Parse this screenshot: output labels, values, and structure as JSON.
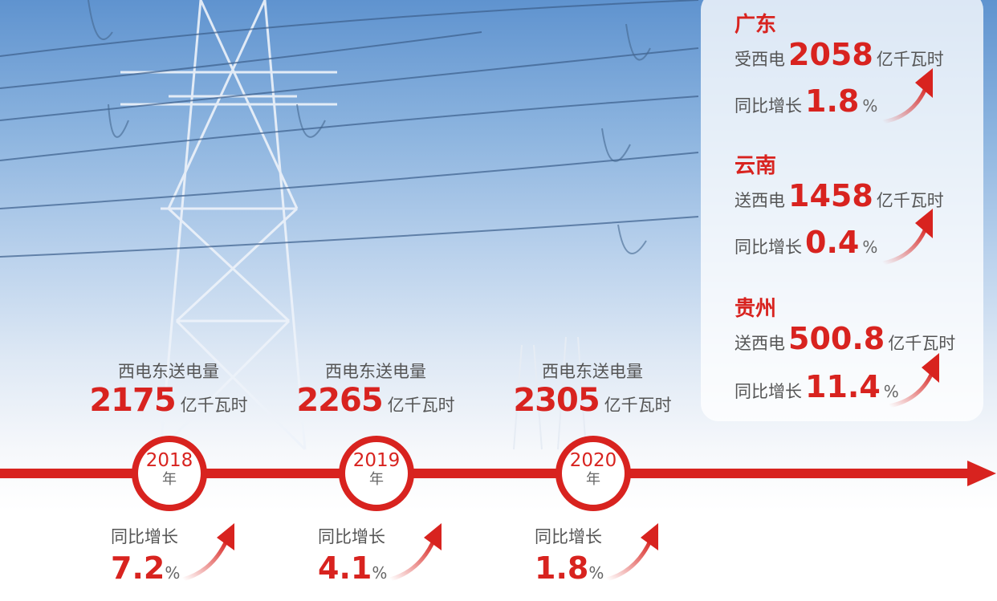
{
  "timeline": {
    "years": [
      {
        "label": "西电东送电量",
        "value": "2175",
        "unit": "亿千瓦时",
        "year": "2018",
        "year_suffix": "年",
        "growth_label": "同比增长",
        "growth": "7.2",
        "pct": "%"
      },
      {
        "label": "西电东送电量",
        "value": "2265",
        "unit": "亿千瓦时",
        "year": "2019",
        "year_suffix": "年",
        "growth_label": "同比增长",
        "growth": "4.1",
        "pct": "%"
      },
      {
        "label": "西电东送电量",
        "value": "2305",
        "unit": "亿千瓦时",
        "year": "2020",
        "year_suffix": "年",
        "growth_label": "同比增长",
        "growth": "1.8",
        "pct": "%"
      }
    ]
  },
  "provinces": [
    {
      "name": "广东",
      "label": "受西电",
      "value": "2058",
      "unit": "亿千瓦时",
      "growth_label": "同比增长",
      "growth": "1.8",
      "pct": "%"
    },
    {
      "name": "云南",
      "label": "送西电",
      "value": "1458",
      "unit": "亿千瓦时",
      "growth_label": "同比增长",
      "growth": "0.4",
      "pct": "%"
    },
    {
      "name": "贵州",
      "label": "送西电",
      "value": "500.8",
      "unit": "亿千瓦时",
      "growth_label": "同比增长",
      "growth": "11.4",
      "pct": "%"
    }
  ],
  "colors": {
    "accent": "#d8231f",
    "sky": "#8cb4df"
  }
}
